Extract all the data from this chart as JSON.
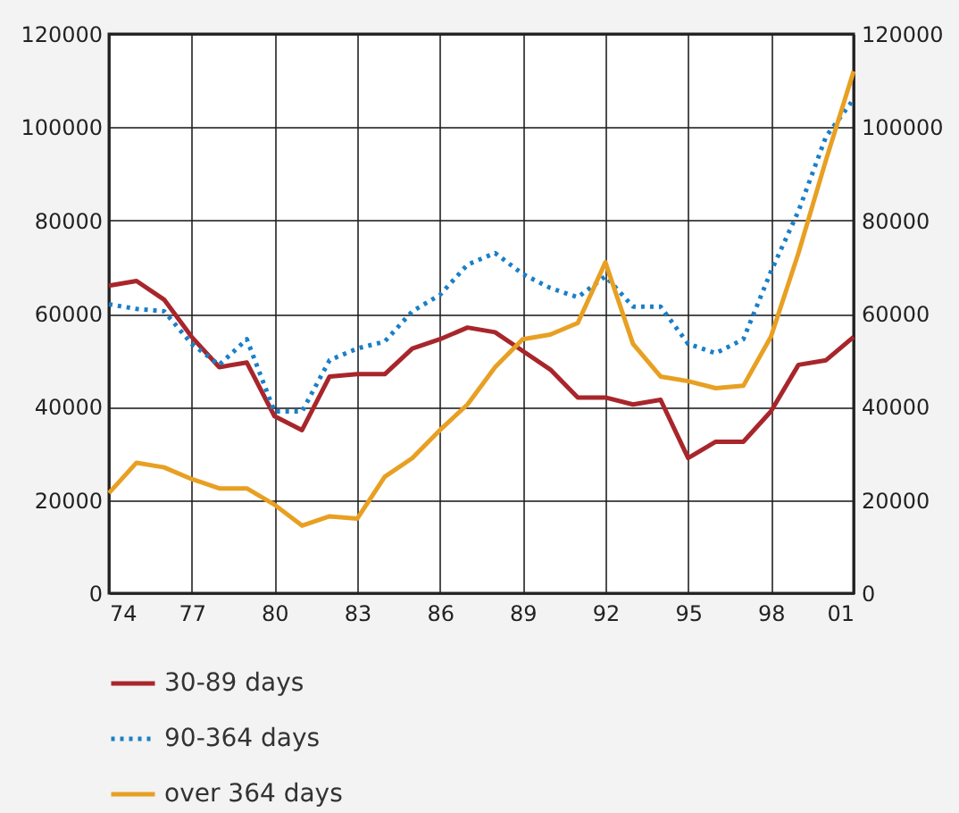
{
  "chart_data": {
    "type": "line",
    "x": [
      1974,
      1975,
      1976,
      1977,
      1978,
      1979,
      1980,
      1981,
      1982,
      1983,
      1984,
      1985,
      1986,
      1987,
      1988,
      1989,
      1990,
      1991,
      1992,
      1993,
      1994,
      1995,
      1996,
      1997,
      1998,
      1999,
      2000,
      2001
    ],
    "series": [
      {
        "name": "30-89 days",
        "color": "#a8262b",
        "line_style": "solid",
        "values": [
          66000,
          67000,
          63000,
          55000,
          48500,
          49500,
          38000,
          35000,
          46500,
          47000,
          47000,
          52500,
          54500,
          57000,
          56000,
          52000,
          48000,
          42000,
          42000,
          40500,
          41500,
          29000,
          32500,
          32500,
          39000,
          49000,
          50000,
          55000
        ]
      },
      {
        "name": "90-364 days",
        "color": "#1a7fc8",
        "line_style": "dotted",
        "values": [
          62000,
          61000,
          60500,
          53500,
          49000,
          54500,
          39000,
          39000,
          50000,
          52500,
          54000,
          60500,
          64000,
          70500,
          73000,
          68500,
          65500,
          63500,
          68000,
          61500,
          61500,
          53500,
          51500,
          54500,
          69000,
          82000,
          98000,
          106000
        ]
      },
      {
        "name": "over 364 days",
        "color": "#e8a023",
        "line_style": "solid",
        "values": [
          21500,
          28000,
          27000,
          24500,
          22500,
          22500,
          19000,
          14500,
          16500,
          16000,
          25000,
          29000,
          35000,
          40500,
          48500,
          54500,
          55500,
          58000,
          71000,
          53500,
          46500,
          45500,
          44000,
          44500,
          55000,
          73000,
          93000,
          112000
        ]
      }
    ],
    "xlim": [
      1974,
      2001
    ],
    "xticks": [
      {
        "value": 1974,
        "label": "74"
      },
      {
        "value": 1977,
        "label": "77"
      },
      {
        "value": 1980,
        "label": "80"
      },
      {
        "value": 1983,
        "label": "83"
      },
      {
        "value": 1986,
        "label": "86"
      },
      {
        "value": 1989,
        "label": "89"
      },
      {
        "value": 1992,
        "label": "92"
      },
      {
        "value": 1995,
        "label": "95"
      },
      {
        "value": 1998,
        "label": "98"
      },
      {
        "value": 2001,
        "label": "01"
      }
    ],
    "ylim": [
      0,
      120000
    ],
    "yticks": [
      0,
      20000,
      40000,
      60000,
      80000,
      100000,
      120000
    ],
    "y2lim": [
      0,
      120000
    ],
    "y2ticks": [
      0,
      20000,
      40000,
      60000,
      80000,
      100000,
      120000
    ],
    "grid": true,
    "legend": "bottom"
  }
}
